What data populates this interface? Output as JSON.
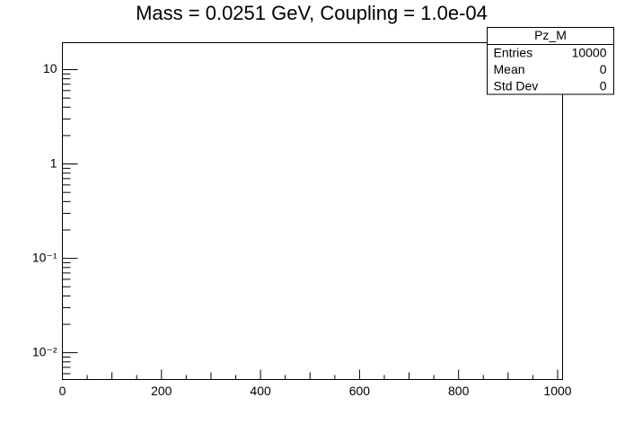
{
  "chart_data": {
    "type": "histogram",
    "title": "Mass = 0.0251 GeV, Coupling = 1.0e-04",
    "xlim": [
      0,
      1010
    ],
    "xticks": [
      0,
      200,
      400,
      600,
      800,
      1000
    ],
    "xminorticks": [
      50,
      100,
      150,
      250,
      300,
      350,
      450,
      500,
      550,
      650,
      700,
      750,
      850,
      900,
      950
    ],
    "ylim": [
      0.0052,
      19.3
    ],
    "log_y": true,
    "yticks": [
      {
        "value": 0.01,
        "label": "10⁻²"
      },
      {
        "value": 0.1,
        "label": "10⁻¹"
      },
      1,
      10
    ],
    "yminorticks": [
      0.006,
      0.007,
      0.008,
      0.009,
      0.02,
      0.03,
      0.04,
      0.05,
      0.06,
      0.07,
      0.08,
      0.09,
      0.2,
      0.3,
      0.4,
      0.5,
      0.6,
      0.7,
      0.8,
      0.9,
      2,
      3,
      4,
      5,
      6,
      7,
      8,
      9
    ],
    "stats": {
      "title": "Pz_M",
      "rows": [
        [
          "Entries",
          10000
        ],
        [
          "Mean",
          0
        ],
        [
          "Std Dev",
          0
        ]
      ]
    }
  }
}
